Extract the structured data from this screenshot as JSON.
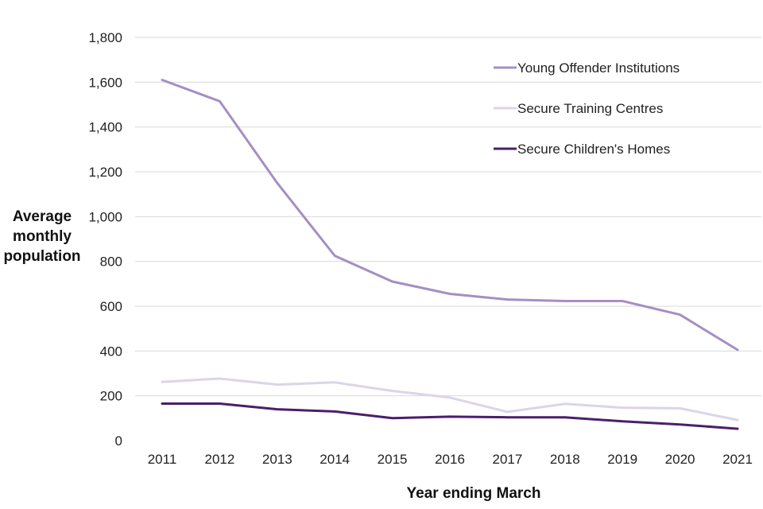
{
  "chart_data": {
    "type": "line",
    "title": "",
    "xlabel": "Year ending March",
    "ylabel": [
      "Average",
      "monthly",
      "population"
    ],
    "x": [
      "2011",
      "2012",
      "2013",
      "2014",
      "2015",
      "2016",
      "2017",
      "2018",
      "2019",
      "2020",
      "2021"
    ],
    "ylim": [
      0,
      1800
    ],
    "yticks": [
      0,
      200,
      400,
      600,
      800,
      1000,
      1200,
      1400,
      1600,
      1800
    ],
    "ytick_labels": [
      "0",
      "200",
      "400",
      "600",
      "800",
      "1,000",
      "1,200",
      "1,400",
      "1,600",
      "1,800"
    ],
    "grid": true,
    "legend_position": "top-right",
    "series": [
      {
        "name": "Young Offender Institutions",
        "color": "#a58fc2",
        "values": [
          1610,
          1515,
          1150,
          825,
          710,
          655,
          630,
          623,
          623,
          562,
          405
        ]
      },
      {
        "name": "Secure Training Centres",
        "color": "#dcd4e8",
        "values": [
          262,
          277,
          250,
          260,
          222,
          192,
          128,
          164,
          147,
          144,
          92
        ]
      },
      {
        "name": "Secure Children's Homes",
        "color": "#4a1f6b",
        "values": [
          165,
          165,
          140,
          130,
          100,
          107,
          104,
          104,
          86,
          72,
          53
        ]
      }
    ]
  }
}
